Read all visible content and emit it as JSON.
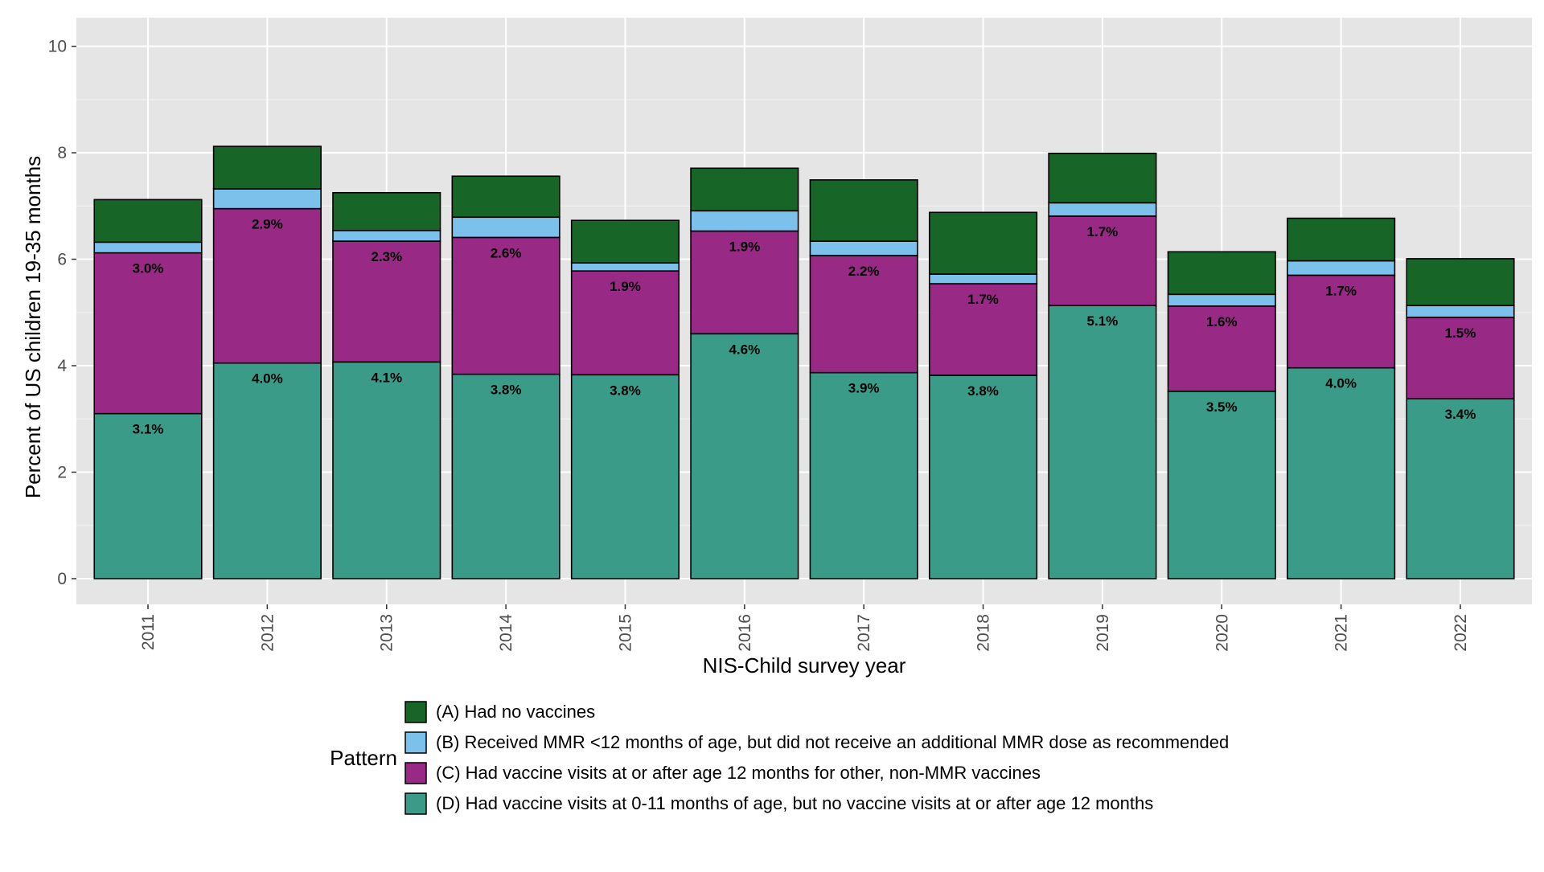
{
  "chart_data": {
    "type": "bar",
    "stacked": true,
    "xlabel": "NIS-Child survey year",
    "ylabel": "Percent of US children 19-35 months",
    "ylim": [
      0,
      10.5
    ],
    "yticks": [
      0,
      2,
      4,
      6,
      8,
      10
    ],
    "grid": true,
    "legend_placement": "bottom",
    "legend_title": "Pattern",
    "categories": [
      "2011",
      "2012",
      "2013",
      "2014",
      "2015",
      "2016",
      "2017",
      "2018",
      "2019",
      "2020",
      "2021",
      "2022"
    ],
    "series": [
      {
        "name": "(D) Had vaccine visits at 0-11 months of age, but no vaccine visits at or after age 12 months",
        "color": "#3a9c88",
        "values": [
          3.1,
          4.05,
          4.07,
          3.84,
          3.83,
          4.6,
          3.87,
          3.82,
          5.13,
          3.52,
          3.96,
          3.38
        ],
        "labels": [
          "3.1%",
          "4.0%",
          "4.1%",
          "3.8%",
          "3.8%",
          "4.6%",
          "3.9%",
          "3.8%",
          "5.1%",
          "3.5%",
          "4.0%",
          "3.4%"
        ]
      },
      {
        "name": "(C) Had vaccine visits at or after age 12 months for other, non-MMR vaccines",
        "color": "#982a85",
        "values": [
          3.02,
          2.9,
          2.27,
          2.57,
          1.95,
          1.93,
          2.2,
          1.72,
          1.68,
          1.6,
          1.74,
          1.53
        ],
        "labels": [
          "3.0%",
          "2.9%",
          "2.3%",
          "2.6%",
          "1.9%",
          "1.9%",
          "2.2%",
          "1.7%",
          "1.7%",
          "1.6%",
          "1.7%",
          "1.5%"
        ]
      },
      {
        "name": "(B) Received MMR <12 months of age, but did not receive an additional MMR dose as recommended",
        "color": "#7cc0ec",
        "values": [
          0.2,
          0.37,
          0.2,
          0.38,
          0.15,
          0.38,
          0.27,
          0.18,
          0.25,
          0.22,
          0.27,
          0.22
        ],
        "labels": []
      },
      {
        "name": "(A) Had no vaccines",
        "color": "#176628",
        "values": [
          0.8,
          0.8,
          0.71,
          0.77,
          0.8,
          0.8,
          1.15,
          1.16,
          0.93,
          0.8,
          0.8,
          0.88
        ],
        "labels": []
      }
    ]
  }
}
